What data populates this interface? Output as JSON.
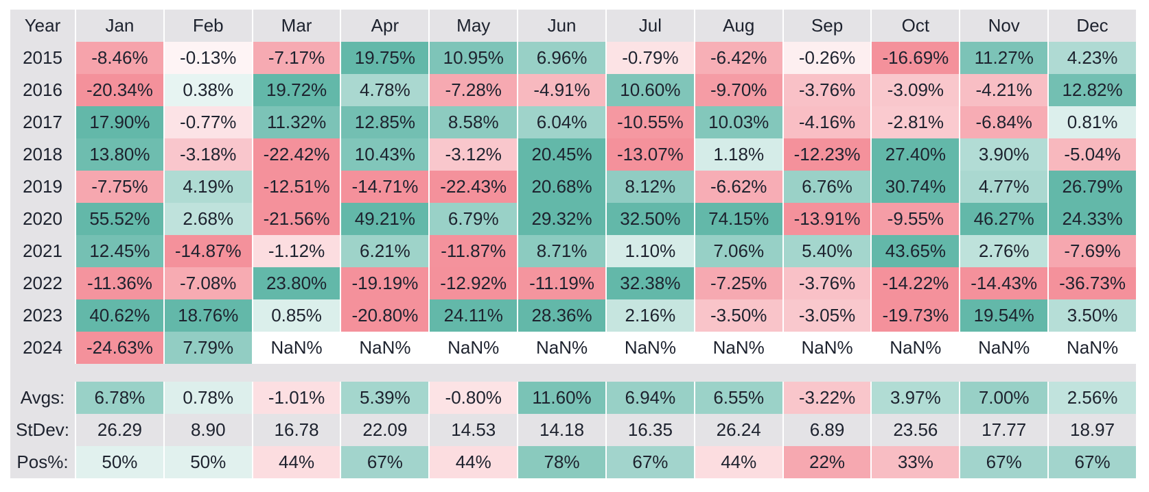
{
  "chart_data": {
    "type": "table",
    "subtype": "monthly-returns-heatmap",
    "columns": [
      "Year",
      "Jan",
      "Feb",
      "Mar",
      "Apr",
      "May",
      "Jun",
      "Jul",
      "Aug",
      "Sep",
      "Oct",
      "Nov",
      "Dec"
    ],
    "rows": [
      {
        "label": "2015",
        "kind": "returns",
        "cells": [
          "-8.46%",
          "-0.13%",
          "-7.17%",
          "19.75%",
          "10.95%",
          "6.96%",
          "-0.79%",
          "-6.42%",
          "-0.26%",
          "-16.69%",
          "11.27%",
          "4.23%"
        ]
      },
      {
        "label": "2016",
        "kind": "returns",
        "cells": [
          "-20.34%",
          "0.38%",
          "19.72%",
          "4.78%",
          "-7.28%",
          "-4.91%",
          "10.60%",
          "-9.70%",
          "-3.76%",
          "-3.09%",
          "-4.21%",
          "12.82%"
        ]
      },
      {
        "label": "2017",
        "kind": "returns",
        "cells": [
          "17.90%",
          "-0.77%",
          "11.32%",
          "12.85%",
          "8.58%",
          "6.04%",
          "-10.55%",
          "10.03%",
          "-4.16%",
          "-2.81%",
          "-6.84%",
          "0.81%"
        ]
      },
      {
        "label": "2018",
        "kind": "returns",
        "cells": [
          "13.80%",
          "-3.18%",
          "-22.42%",
          "10.43%",
          "-3.12%",
          "20.45%",
          "-13.07%",
          "1.18%",
          "-12.23%",
          "27.40%",
          "3.90%",
          "-5.04%"
        ]
      },
      {
        "label": "2019",
        "kind": "returns",
        "cells": [
          "-7.75%",
          "4.19%",
          "-12.51%",
          "-14.71%",
          "-22.43%",
          "20.68%",
          "8.12%",
          "-6.62%",
          "6.76%",
          "30.74%",
          "4.77%",
          "26.79%"
        ]
      },
      {
        "label": "2020",
        "kind": "returns",
        "cells": [
          "55.52%",
          "2.68%",
          "-21.56%",
          "49.21%",
          "6.79%",
          "29.32%",
          "32.50%",
          "74.15%",
          "-13.91%",
          "-9.55%",
          "46.27%",
          "24.33%"
        ]
      },
      {
        "label": "2021",
        "kind": "returns",
        "cells": [
          "12.45%",
          "-14.87%",
          "-1.12%",
          "6.21%",
          "-11.87%",
          "8.71%",
          "1.10%",
          "7.06%",
          "5.40%",
          "43.65%",
          "2.76%",
          "-7.69%"
        ]
      },
      {
        "label": "2022",
        "kind": "returns",
        "cells": [
          "-11.36%",
          "-7.08%",
          "23.80%",
          "-19.19%",
          "-12.92%",
          "-11.19%",
          "32.38%",
          "-7.25%",
          "-3.76%",
          "-14.22%",
          "-14.43%",
          "-36.73%"
        ]
      },
      {
        "label": "2023",
        "kind": "returns",
        "cells": [
          "40.62%",
          "18.76%",
          "0.85%",
          "-20.80%",
          "24.11%",
          "28.36%",
          "2.16%",
          "-3.50%",
          "-3.05%",
          "-19.73%",
          "19.54%",
          "3.50%"
        ]
      },
      {
        "label": "2024",
        "kind": "returns",
        "cells": [
          "-24.63%",
          "7.79%",
          "NaN%",
          "NaN%",
          "NaN%",
          "NaN%",
          "NaN%",
          "NaN%",
          "NaN%",
          "NaN%",
          "NaN%",
          "NaN%"
        ]
      },
      {
        "label": "",
        "kind": "spacer",
        "cells": []
      },
      {
        "label": "Avgs:",
        "kind": "returns",
        "cells": [
          "6.78%",
          "0.78%",
          "-1.01%",
          "5.39%",
          "-0.80%",
          "11.60%",
          "6.94%",
          "6.55%",
          "-3.22%",
          "3.97%",
          "7.00%",
          "2.56%"
        ]
      },
      {
        "label": "StDev:",
        "kind": "plain",
        "cells": [
          "26.29",
          "8.90",
          "16.78",
          "22.09",
          "14.53",
          "14.18",
          "16.35",
          "26.24",
          "6.89",
          "23.56",
          "17.77",
          "18.97"
        ]
      },
      {
        "label": "Pos%:",
        "kind": "diverging",
        "cells": [
          "50%",
          "50%",
          "44%",
          "67%",
          "44%",
          "78%",
          "67%",
          "44%",
          "22%",
          "33%",
          "67%",
          "67%"
        ]
      }
    ],
    "colors": {
      "positive_base": "#63b8a9",
      "negative_base": "#f4919b",
      "neutral_gray": "#e4e3e6",
      "nan_background": "#ffffff",
      "text": "#1d222e"
    }
  }
}
